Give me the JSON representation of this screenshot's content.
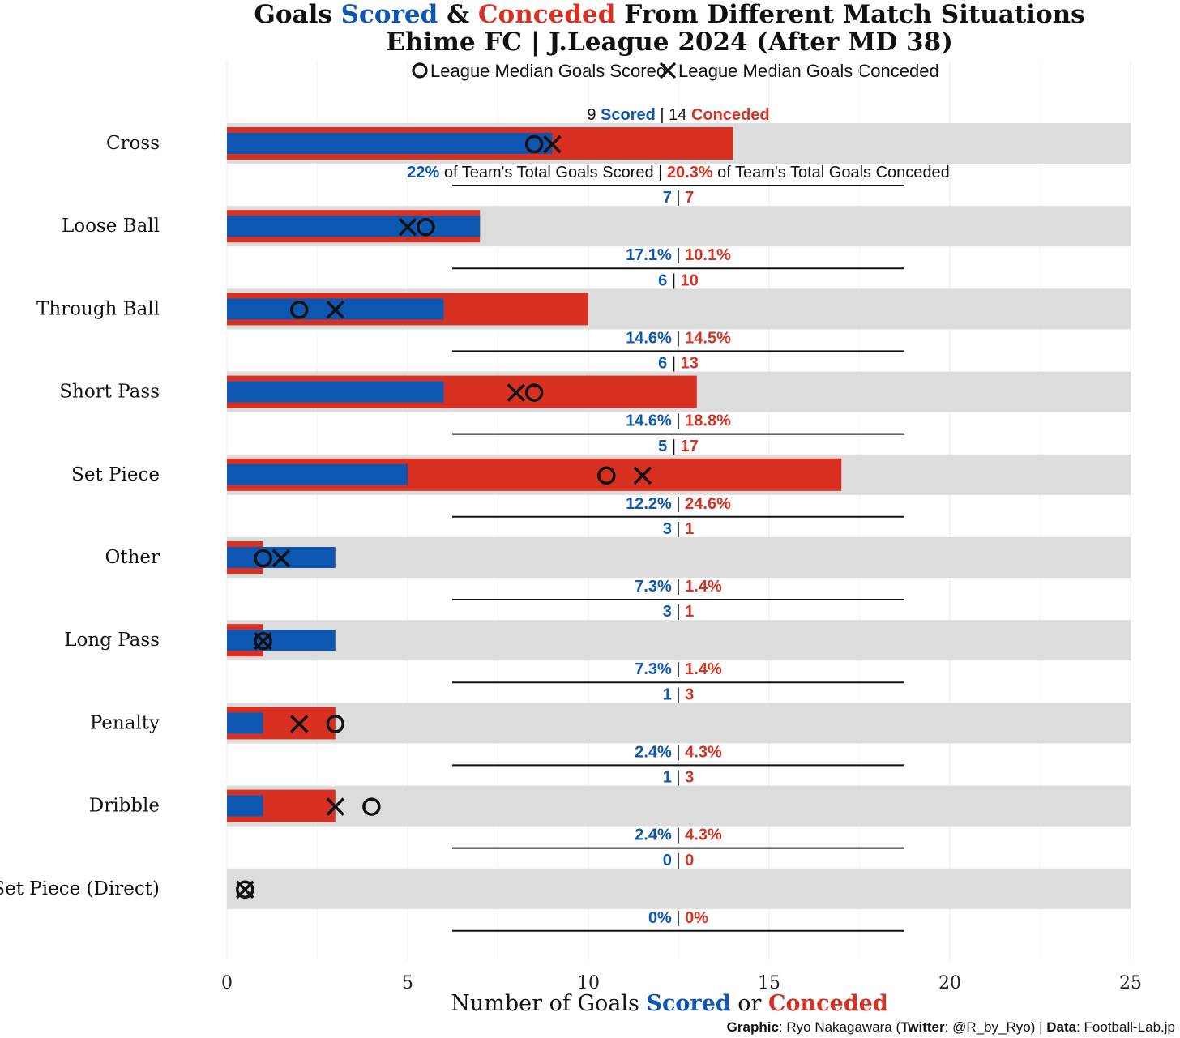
{
  "colors": {
    "scored": "#0d56b2",
    "conceded": "#d93121",
    "track": "#dcdcdc",
    "marker": "#111111"
  },
  "title": {
    "prefix": "Goals ",
    "scored": "Scored",
    "mid": " & ",
    "conceded": "Conceded",
    "suffix": " From Different Match Situations"
  },
  "subtitle": "Ehime FC | J.League 2024 (After MD 38)",
  "legend": {
    "scored_median": "League Median Goals Scored",
    "conceded_median": "League Median Goals Conceded"
  },
  "first_row_text": {
    "scored_word": "Scored",
    "conceded_word": "Conceded",
    "pct_scored_suffix": " of Team's Total Goals Scored",
    "pct_conceded_suffix": " of Team's Total Goals Conceded"
  },
  "separator": " | ",
  "chart_data": {
    "type": "bar",
    "title": "Goals Scored & Conceded From Different Match Situations",
    "subtitle": "Ehime FC | J.League 2024 (After MD 38)",
    "xlabel": {
      "prefix": "Number of Goals ",
      "scored": "Scored",
      "mid": " or ",
      "conceded": "Conceded"
    },
    "xlim": [
      0,
      25
    ],
    "xticks": [
      "0",
      "5",
      "10",
      "15",
      "20",
      "25"
    ],
    "categories": [
      "Cross",
      "Loose Ball",
      "Through Ball",
      "Short Pass",
      "Set Piece",
      "Other",
      "Long Pass",
      "Penalty",
      "Dribble",
      "Set Piece (Direct)"
    ],
    "series": [
      {
        "name": "Scored",
        "values": [
          9,
          7,
          6,
          6,
          5,
          3,
          3,
          1,
          1,
          0
        ]
      },
      {
        "name": "Conceded",
        "values": [
          14,
          7,
          10,
          13,
          17,
          1,
          1,
          3,
          3,
          0
        ]
      },
      {
        "name": "League Median Goals Scored",
        "values": [
          8.5,
          5.5,
          2,
          8.5,
          10.5,
          1,
          1,
          3,
          4,
          0.5
        ]
      },
      {
        "name": "League Median Goals Conceded",
        "values": [
          9,
          5,
          3,
          8,
          11.5,
          1.5,
          1,
          2,
          3,
          0.5
        ]
      }
    ],
    "pct_scored": [
      "22%",
      "17.1%",
      "14.6%",
      "14.6%",
      "12.2%",
      "7.3%",
      "7.3%",
      "2.4%",
      "2.4%",
      "0%"
    ],
    "pct_conceded": [
      "20.3%",
      "10.1%",
      "14.5%",
      "18.8%",
      "24.6%",
      "1.4%",
      "1.4%",
      "4.3%",
      "4.3%",
      "0%"
    ]
  },
  "footer": {
    "graphic_label": "Graphic",
    "author": ": Ryo Nakagawara (",
    "twitter_label": "Twitter",
    "twitter_handle": ": @R_by_Ryo) | ",
    "data_label": "Data",
    "data_source": ": Football-Lab.jp"
  }
}
